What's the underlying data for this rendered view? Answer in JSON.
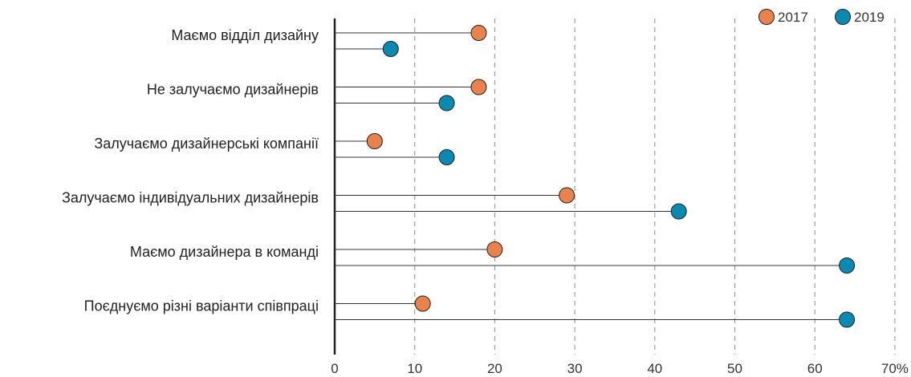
{
  "chart_data": {
    "type": "dot",
    "title": "",
    "xlabel": "",
    "ylabel": "",
    "categories": [
      "Маємо відділ дизайну",
      "Не залучаємо дизайнерів",
      "Залучаємо дизайнерські компанії",
      "Залучаємо індивідуальних дизайнерів",
      "Маємо дизайнера в команді",
      "Поєднуємо різні варіанти співпраці"
    ],
    "series": [
      {
        "name": "2017",
        "color": "#E8834E",
        "values": [
          18,
          18,
          5,
          29,
          20,
          11
        ]
      },
      {
        "name": "2019",
        "color": "#0A8AB0",
        "values": [
          7,
          14,
          14,
          43,
          64,
          64
        ]
      }
    ],
    "xlim": [
      0,
      70
    ],
    "x_ticks": [
      {
        "value": 0,
        "label": "0"
      },
      {
        "value": 10,
        "label": "10"
      },
      {
        "value": 20,
        "label": "20"
      },
      {
        "value": 30,
        "label": "30"
      },
      {
        "value": 40,
        "label": "40"
      },
      {
        "value": 50,
        "label": "50"
      },
      {
        "value": 60,
        "label": "60"
      },
      {
        "value": 70,
        "label": "70%"
      }
    ],
    "grid": "vertical-dashed",
    "legend_position": "top-right"
  }
}
